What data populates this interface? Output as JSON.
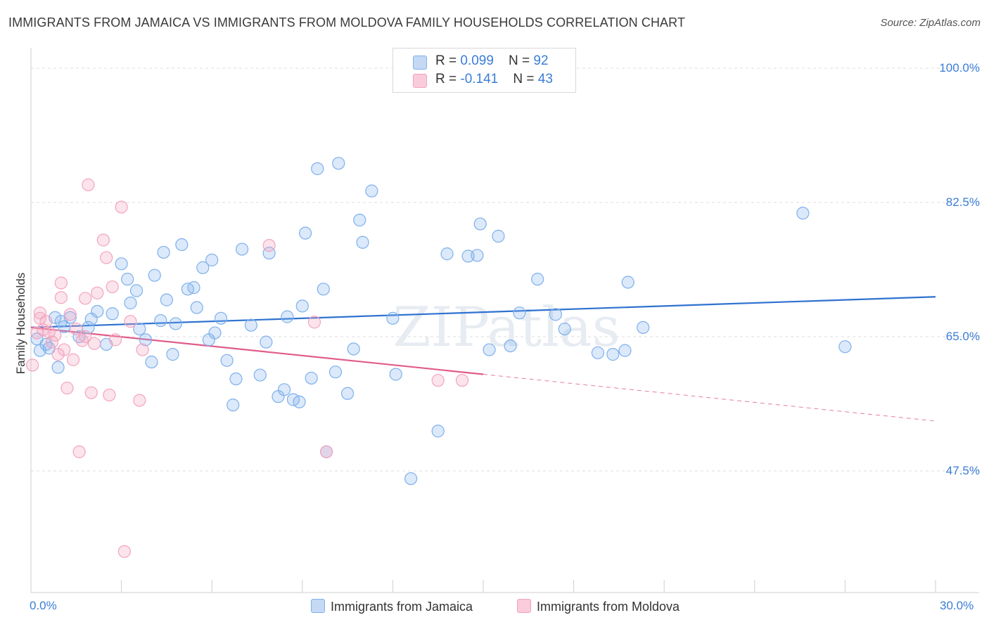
{
  "chart_data": {
    "type": "scatter",
    "title": "IMMIGRANTS FROM JAMAICA VS IMMIGRANTS FROM MOLDOVA FAMILY HOUSEHOLDS CORRELATION CHART",
    "source": "Source: ZipAtlas.com",
    "ylabel": "Family Households",
    "xlabel": "",
    "xlim": [
      0,
      30
    ],
    "ylim": [
      30,
      100
    ],
    "x_tick_labels": [
      "0.0%",
      "30.0%"
    ],
    "y_ticks": [
      {
        "value": 100,
        "label": "100.0%"
      },
      {
        "value": 82.5,
        "label": "82.5%"
      },
      {
        "value": 65,
        "label": "65.0%"
      },
      {
        "value": 47.5,
        "label": "47.5%"
      }
    ],
    "watermark": "ZIPatlas",
    "legend": [
      {
        "swatch": "jamaica",
        "r_label": "R = ",
        "r_value": "0.099",
        "n_label": "N = ",
        "n_value": "92"
      },
      {
        "swatch": "moldova",
        "r_label": "R = ",
        "r_value": "-0.141",
        "n_label": "N = ",
        "n_value": "43"
      }
    ],
    "series": [
      {
        "name": "Immigrants from Jamaica",
        "color": "#7fb0ec",
        "line_color": "#2f72d0",
        "trend": {
          "x0": 0,
          "y0": 66.2,
          "x1": 30,
          "y1": 70.2,
          "solid_until": 30
        },
        "points": [
          [
            0.2,
            64.7
          ],
          [
            0.3,
            63.2
          ],
          [
            0.5,
            64.0
          ],
          [
            0.6,
            63.5
          ],
          [
            0.8,
            67.5
          ],
          [
            0.9,
            61.0
          ],
          [
            1.0,
            67.0
          ],
          [
            1.1,
            66.3
          ],
          [
            1.3,
            67.5
          ],
          [
            1.6,
            65.0
          ],
          [
            1.9,
            66.2
          ],
          [
            2.0,
            67.3
          ],
          [
            2.2,
            68.3
          ],
          [
            2.5,
            64.0
          ],
          [
            2.7,
            68.0
          ],
          [
            3.0,
            74.5
          ],
          [
            3.2,
            72.5
          ],
          [
            3.3,
            69.4
          ],
          [
            3.5,
            71.0
          ],
          [
            3.6,
            66.0
          ],
          [
            3.8,
            64.6
          ],
          [
            4.0,
            61.7
          ],
          [
            4.1,
            73.0
          ],
          [
            4.3,
            67.1
          ],
          [
            4.4,
            76.0
          ],
          [
            4.5,
            69.8
          ],
          [
            4.7,
            62.7
          ],
          [
            4.8,
            66.7
          ],
          [
            5.0,
            77.0
          ],
          [
            5.2,
            71.2
          ],
          [
            5.4,
            71.4
          ],
          [
            5.5,
            68.8
          ],
          [
            5.7,
            74.0
          ],
          [
            5.9,
            64.6
          ],
          [
            6.0,
            75.0
          ],
          [
            6.1,
            65.5
          ],
          [
            6.3,
            67.4
          ],
          [
            6.5,
            61.9
          ],
          [
            6.7,
            56.1
          ],
          [
            6.8,
            59.5
          ],
          [
            7.0,
            76.4
          ],
          [
            7.3,
            66.5
          ],
          [
            7.6,
            60.0
          ],
          [
            7.8,
            64.3
          ],
          [
            7.9,
            75.9
          ],
          [
            8.2,
            57.2
          ],
          [
            8.4,
            58.1
          ],
          [
            8.5,
            67.6
          ],
          [
            8.7,
            56.8
          ],
          [
            8.9,
            56.5
          ],
          [
            9.0,
            69.0
          ],
          [
            9.1,
            78.5
          ],
          [
            9.3,
            59.6
          ],
          [
            9.5,
            86.9
          ],
          [
            9.7,
            71.2
          ],
          [
            9.8,
            50.0
          ],
          [
            10.1,
            60.4
          ],
          [
            10.2,
            87.6
          ],
          [
            10.5,
            57.6
          ],
          [
            10.7,
            63.4
          ],
          [
            10.9,
            80.2
          ],
          [
            11.0,
            77.3
          ],
          [
            11.3,
            84.0
          ],
          [
            12.0,
            67.4
          ],
          [
            12.1,
            60.1
          ],
          [
            12.6,
            46.5
          ],
          [
            13.5,
            52.7
          ],
          [
            13.8,
            75.8
          ],
          [
            14.5,
            75.5
          ],
          [
            14.8,
            75.6
          ],
          [
            14.9,
            79.7
          ],
          [
            15.5,
            78.1
          ],
          [
            15.2,
            63.3
          ],
          [
            15.9,
            63.8
          ],
          [
            16.2,
            68.1
          ],
          [
            16.8,
            72.5
          ],
          [
            17.4,
            67.9
          ],
          [
            17.7,
            66.0
          ],
          [
            18.8,
            62.9
          ],
          [
            19.3,
            62.7
          ],
          [
            19.7,
            63.2
          ],
          [
            19.8,
            72.1
          ],
          [
            20.3,
            66.2
          ],
          [
            25.6,
            81.1
          ],
          [
            27.0,
            63.7
          ]
        ]
      },
      {
        "name": "Immigrants from Moldova",
        "color": "#f3a4bf",
        "line_color": "#e05c8a",
        "trend": {
          "x0": 0,
          "y0": 66.2,
          "x1": 30,
          "y1": 54.0,
          "solid_until": 15
        },
        "points": [
          [
            0.05,
            61.3
          ],
          [
            0.2,
            65.5
          ],
          [
            0.3,
            67.4
          ],
          [
            0.3,
            68.1
          ],
          [
            0.4,
            65.9
          ],
          [
            0.5,
            67.0
          ],
          [
            0.6,
            65.6
          ],
          [
            0.7,
            64.3
          ],
          [
            0.8,
            65.2
          ],
          [
            0.9,
            62.7
          ],
          [
            1.0,
            72.0
          ],
          [
            1.0,
            70.1
          ],
          [
            1.1,
            63.3
          ],
          [
            1.2,
            58.3
          ],
          [
            1.3,
            67.9
          ],
          [
            1.4,
            62.0
          ],
          [
            1.5,
            66.0
          ],
          [
            1.6,
            50.0
          ],
          [
            1.7,
            64.5
          ],
          [
            1.8,
            70.0
          ],
          [
            1.8,
            65.0
          ],
          [
            1.9,
            84.8
          ],
          [
            2.0,
            57.7
          ],
          [
            2.1,
            64.1
          ],
          [
            2.2,
            70.7
          ],
          [
            2.4,
            77.6
          ],
          [
            2.5,
            75.3
          ],
          [
            2.6,
            57.4
          ],
          [
            2.7,
            71.5
          ],
          [
            2.8,
            64.6
          ],
          [
            3.0,
            81.9
          ],
          [
            3.1,
            37.0
          ],
          [
            3.3,
            67.0
          ],
          [
            3.6,
            56.7
          ],
          [
            3.7,
            63.3
          ],
          [
            7.9,
            76.9
          ],
          [
            9.4,
            66.9
          ],
          [
            9.8,
            50.0
          ],
          [
            13.5,
            59.3
          ],
          [
            14.3,
            59.3
          ]
        ]
      }
    ]
  },
  "bottom_legend": [
    "Immigrants from Jamaica",
    "Immigrants from Moldova"
  ]
}
